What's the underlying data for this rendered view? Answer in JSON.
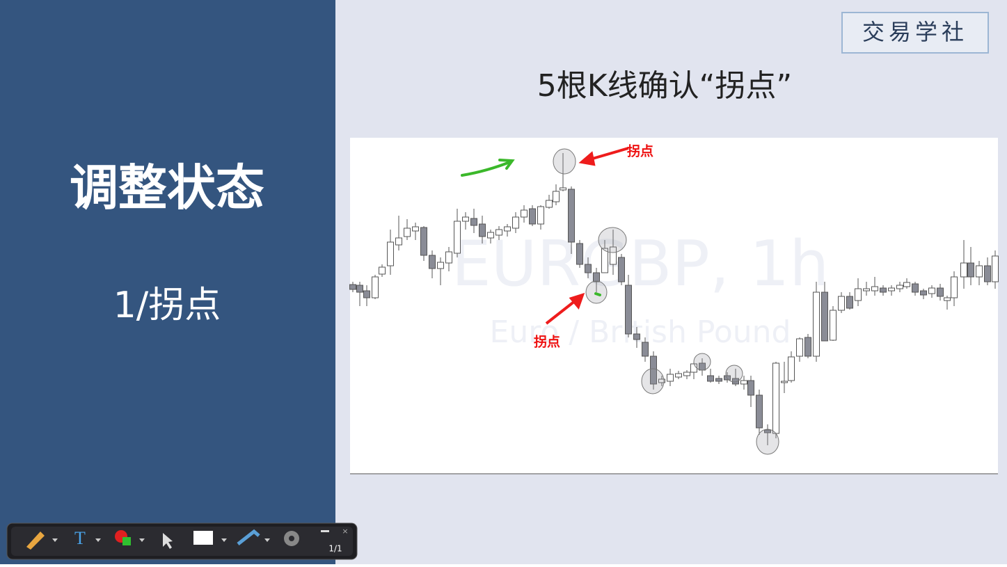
{
  "sidebar": {
    "title": "调整状态",
    "subtitle": "1/拐点"
  },
  "brand": "交易学社",
  "slide_title": "5根K线确认“拐点”",
  "chart": {
    "watermark_symbol": "EURGBP, 1h",
    "watermark_name": "Euro / British Pound",
    "annotations": [
      "拐点",
      "拐点"
    ]
  },
  "toolbar": {
    "page": "1/1"
  }
}
